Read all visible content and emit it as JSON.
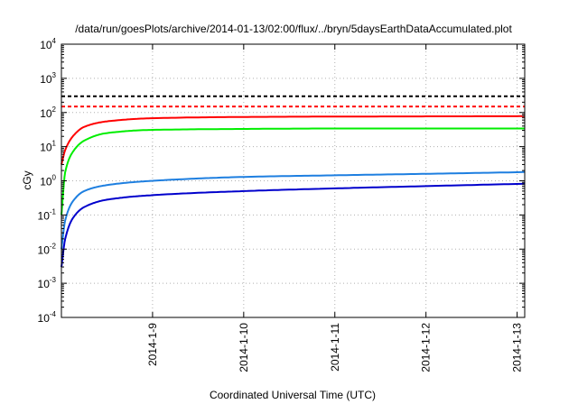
{
  "chart_data": {
    "type": "line",
    "title": "/data/run/goesPlots/archive/2014-01-13/02:00/flux/../bryn/5daysEarthDataAccumulated.plot",
    "xlabel": "Coordinated Universal Time (UTC)",
    "ylabel": "cGy",
    "yscale": "log",
    "ylim": [
      0.0001,
      10000
    ],
    "xlim": [
      "2014-01-08",
      "2014-01-13 02:00"
    ],
    "grid": true,
    "x_ticks": [
      "2014-1-9",
      "2014-1-10",
      "2014-1-11",
      "2014-1-12",
      "2014-1-13"
    ],
    "y_ticks": [
      {
        "value": 0.0001,
        "base": "10",
        "exp": "-4"
      },
      {
        "value": 0.001,
        "base": "10",
        "exp": "-3"
      },
      {
        "value": 0.01,
        "base": "10",
        "exp": "-2"
      },
      {
        "value": 0.1,
        "base": "10",
        "exp": "-1"
      },
      {
        "value": 1,
        "base": "10",
        "exp": "0"
      },
      {
        "value": 10,
        "base": "10",
        "exp": "1"
      },
      {
        "value": 100,
        "base": "10",
        "exp": "2"
      },
      {
        "value": 1000,
        "base": "10",
        "exp": "3"
      },
      {
        "value": 10000,
        "base": "10",
        "exp": "4"
      }
    ],
    "series": [
      {
        "color": "#ff0000",
        "style": "solid",
        "x": [
          "2014-01-08 00:00",
          "2014-01-08 01:00",
          "2014-01-08 03:00",
          "2014-01-08 06:00",
          "2014-01-08 12:00",
          "2014-01-09 00:00",
          "2014-01-10 00:00",
          "2014-01-11 00:00",
          "2014-01-12 00:00",
          "2014-01-13 02:00"
        ],
        "values": [
          3,
          8,
          20,
          38,
          55,
          68,
          74,
          76,
          77,
          78
        ]
      },
      {
        "color": "#00ee00",
        "style": "solid",
        "x": [
          "2014-01-08 00:00",
          "2014-01-08 01:00",
          "2014-01-08 03:00",
          "2014-01-08 06:00",
          "2014-01-08 12:00",
          "2014-01-09 00:00",
          "2014-01-10 00:00",
          "2014-01-11 00:00",
          "2014-01-12 00:00",
          "2014-01-13 02:00"
        ],
        "values": [
          0.1,
          1.8,
          7,
          15,
          25,
          31,
          33,
          34,
          34,
          34
        ]
      },
      {
        "color": "#1e7fe0",
        "style": "solid",
        "x": [
          "2014-01-08 00:00",
          "2014-01-08 01:00",
          "2014-01-08 03:00",
          "2014-01-08 06:00",
          "2014-01-08 12:00",
          "2014-01-09 00:00",
          "2014-01-10 00:00",
          "2014-01-11 00:00",
          "2014-01-12 00:00",
          "2014-01-13 02:00"
        ],
        "values": [
          0.01,
          0.07,
          0.25,
          0.5,
          0.75,
          1.0,
          1.3,
          1.45,
          1.6,
          1.8
        ]
      },
      {
        "color": "#0000cc",
        "style": "solid",
        "x": [
          "2014-01-08 00:00",
          "2014-01-08 01:00",
          "2014-01-08 03:00",
          "2014-01-08 06:00",
          "2014-01-08 12:00",
          "2014-01-09 00:00",
          "2014-01-10 00:00",
          "2014-01-11 00:00",
          "2014-01-12 00:00",
          "2014-01-13 02:00"
        ],
        "values": [
          0.003,
          0.02,
          0.08,
          0.17,
          0.28,
          0.38,
          0.5,
          0.6,
          0.7,
          0.82
        ]
      },
      {
        "color": "#000000",
        "style": "dashed",
        "x": [
          "2014-01-08 00:00",
          "2014-01-13 02:00"
        ],
        "values": [
          300,
          300
        ]
      },
      {
        "color": "#ff0000",
        "style": "dashed",
        "x": [
          "2014-01-08 00:00",
          "2014-01-13 02:00"
        ],
        "values": [
          150,
          150
        ]
      }
    ]
  }
}
